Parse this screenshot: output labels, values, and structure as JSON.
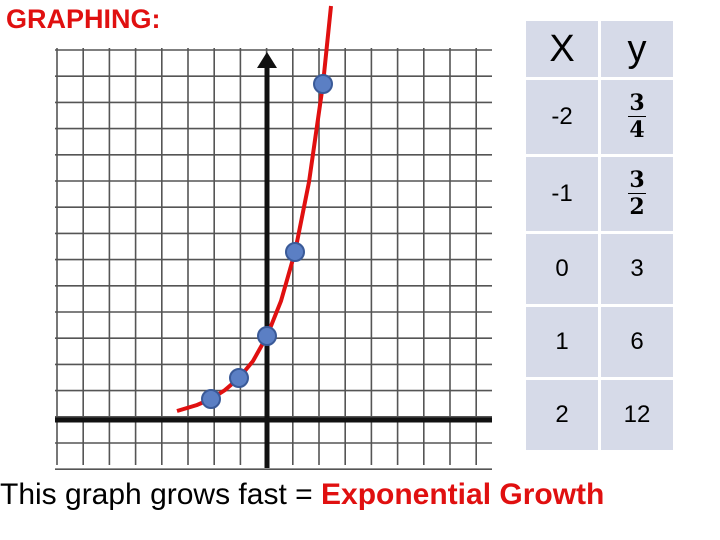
{
  "header": {
    "title": "GRAPHING:"
  },
  "table": {
    "headers": [
      "X",
      "y"
    ],
    "rows": [
      {
        "x": -2,
        "y": {
          "numerator": 3,
          "denominator": 4
        }
      },
      {
        "x": -1,
        "y": {
          "numerator": 3,
          "denominator": 2
        }
      },
      {
        "x": 0,
        "y": 3
      },
      {
        "x": 1,
        "y": 6
      },
      {
        "x": 2,
        "y": 12
      }
    ]
  },
  "caption": {
    "text": "This graph grows fast =",
    "highlight": "Exponential Growth"
  }
}
